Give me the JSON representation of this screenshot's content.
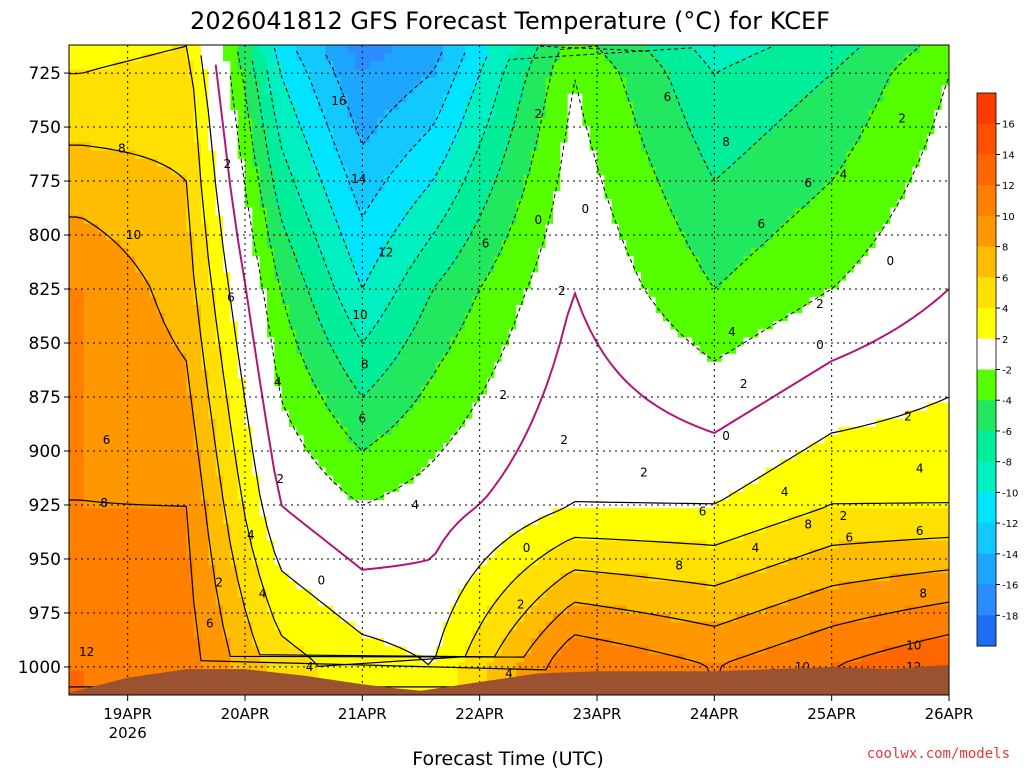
{
  "chart_data": {
    "type": "heatmap",
    "title": "2026041812 GFS Forecast Temperature (°C) for KCEF",
    "xlabel": "Forecast Time (UTC)",
    "ylabel": "",
    "credit": "coolwx.com/models",
    "x_start_day": 18.5,
    "x_end_day": 26.0,
    "x_ticks": [
      {
        "day": 19,
        "label": "19APR",
        "sublabel": "2026"
      },
      {
        "day": 20,
        "label": "20APR",
        "sublabel": ""
      },
      {
        "day": 21,
        "label": "21APR",
        "sublabel": ""
      },
      {
        "day": 22,
        "label": "22APR",
        "sublabel": ""
      },
      {
        "day": 23,
        "label": "23APR",
        "sublabel": ""
      },
      {
        "day": 24,
        "label": "24APR",
        "sublabel": ""
      },
      {
        "day": 25,
        "label": "25APR",
        "sublabel": ""
      },
      {
        "day": 26,
        "label": "26APR",
        "sublabel": ""
      }
    ],
    "y_ticks": [
      725,
      750,
      775,
      800,
      825,
      850,
      875,
      900,
      925,
      950,
      975,
      1000
    ],
    "ylim": [
      1013,
      712
    ],
    "colorbar": {
      "levels": [
        -18,
        -16,
        -14,
        -12,
        -10,
        -8,
        -6,
        -4,
        -2,
        2,
        4,
        6,
        8,
        10,
        12,
        14,
        16
      ],
      "colors": [
        "#1e6ef5",
        "#2a8cff",
        "#1ea6ff",
        "#12c8ff",
        "#00e4ff",
        "#00f0c2",
        "#00ee99",
        "#22e860",
        "#55ff00",
        "#ffffff",
        "#ffff00",
        "#ffe000",
        "#ffbd00",
        "#ff9800",
        "#ff8000",
        "#ff6600",
        "#ff5000",
        "#ff3a00"
      ]
    },
    "ground_pressure": [
      [
        18.5,
        1012
      ],
      [
        19.0,
        1005
      ],
      [
        19.5,
        1001
      ],
      [
        20.0,
        1001
      ],
      [
        20.5,
        1004
      ],
      [
        21.0,
        1008
      ],
      [
        21.3,
        1010
      ],
      [
        21.5,
        1011
      ],
      [
        22.0,
        1007
      ],
      [
        22.5,
        1003
      ],
      [
        23.0,
        1002
      ],
      [
        24.0,
        1002
      ],
      [
        24.5,
        1001
      ],
      [
        25.0,
        1000
      ],
      [
        25.5,
        1001
      ],
      [
        26.0,
        999
      ]
    ],
    "sample_profiles": [
      {
        "day": 18.6,
        "temps": [
          4,
          10,
          10,
          12
        ]
      },
      {
        "day": 19.5,
        "temps": [
          5,
          7,
          10,
          11
        ]
      },
      {
        "day": 20.3,
        "temps": [
          -10,
          -4,
          0,
          5
        ]
      },
      {
        "day": 21.0,
        "temps": [
          -16,
          -10,
          -2,
          3
        ]
      },
      {
        "day": 21.6,
        "temps": [
          -14,
          -6,
          -1,
          2
        ]
      },
      {
        "day": 22.8,
        "temps": [
          -2,
          0,
          2,
          12
        ]
      },
      {
        "day": 24.0,
        "temps": [
          -8,
          -4,
          2,
          10
        ]
      },
      {
        "day": 25.0,
        "temps": [
          -6,
          -2,
          4,
          12
        ]
      },
      {
        "day": 26.0,
        "temps": [
          -2,
          0,
          4,
          14
        ]
      }
    ],
    "contour_labels": [
      {
        "day": 18.95,
        "p": 760,
        "text": "8"
      },
      {
        "day": 19.05,
        "p": 800,
        "text": "10"
      },
      {
        "day": 18.82,
        "p": 895,
        "text": "6"
      },
      {
        "day": 18.8,
        "p": 924,
        "text": "8"
      },
      {
        "day": 18.65,
        "p": 993,
        "text": "12"
      },
      {
        "day": 19.85,
        "p": 767,
        "text": "2"
      },
      {
        "day": 19.88,
        "p": 829,
        "text": "6"
      },
      {
        "day": 20.28,
        "p": 868,
        "text": "4"
      },
      {
        "day": 20.8,
        "p": 738,
        "text": "16"
      },
      {
        "day": 20.97,
        "p": 774,
        "text": "14"
      },
      {
        "day": 21.2,
        "p": 808,
        "text": "12"
      },
      {
        "day": 20.98,
        "p": 837,
        "text": "10"
      },
      {
        "day": 21.02,
        "p": 860,
        "text": "8"
      },
      {
        "day": 21.0,
        "p": 885,
        "text": "6"
      },
      {
        "day": 22.5,
        "p": 744,
        "text": "2"
      },
      {
        "day": 23.6,
        "p": 736,
        "text": "6"
      },
      {
        "day": 24.1,
        "p": 757,
        "text": "8"
      },
      {
        "day": 24.8,
        "p": 776,
        "text": "6"
      },
      {
        "day": 25.1,
        "p": 772,
        "text": "4"
      },
      {
        "day": 24.4,
        "p": 795,
        "text": "6"
      },
      {
        "day": 25.6,
        "p": 746,
        "text": "2"
      },
      {
        "day": 22.5,
        "p": 793,
        "text": "0"
      },
      {
        "day": 22.9,
        "p": 788,
        "text": "0"
      },
      {
        "day": 22.05,
        "p": 804,
        "text": "6"
      },
      {
        "day": 22.7,
        "p": 826,
        "text": "2"
      },
      {
        "day": 24.15,
        "p": 845,
        "text": "4"
      },
      {
        "day": 24.9,
        "p": 832,
        "text": "2"
      },
      {
        "day": 25.5,
        "p": 812,
        "text": "0"
      },
      {
        "day": 24.9,
        "p": 851,
        "text": "0"
      },
      {
        "day": 24.25,
        "p": 869,
        "text": "2"
      },
      {
        "day": 24.1,
        "p": 893,
        "text": "0"
      },
      {
        "day": 22.2,
        "p": 874,
        "text": "2"
      },
      {
        "day": 22.72,
        "p": 895,
        "text": "2"
      },
      {
        "day": 23.4,
        "p": 910,
        "text": "2"
      },
      {
        "day": 20.3,
        "p": 913,
        "text": "2"
      },
      {
        "day": 20.05,
        "p": 939,
        "text": "4"
      },
      {
        "day": 21.45,
        "p": 925,
        "text": "4"
      },
      {
        "day": 22.4,
        "p": 945,
        "text": "0"
      },
      {
        "day": 19.78,
        "p": 961,
        "text": "2"
      },
      {
        "day": 20.15,
        "p": 966,
        "text": "4"
      },
      {
        "day": 20.65,
        "p": 960,
        "text": "0"
      },
      {
        "day": 19.7,
        "p": 980,
        "text": "6"
      },
      {
        "day": 20.55,
        "p": 1000,
        "text": "4"
      },
      {
        "day": 22.35,
        "p": 971,
        "text": "2"
      },
      {
        "day": 22.25,
        "p": 1003,
        "text": "4"
      },
      {
        "day": 23.9,
        "p": 928,
        "text": "6"
      },
      {
        "day": 23.7,
        "p": 953,
        "text": "8"
      },
      {
        "day": 24.35,
        "p": 945,
        "text": "4"
      },
      {
        "day": 24.6,
        "p": 919,
        "text": "4"
      },
      {
        "day": 24.8,
        "p": 934,
        "text": "8"
      },
      {
        "day": 25.15,
        "p": 940,
        "text": "6"
      },
      {
        "day": 25.1,
        "p": 930,
        "text": "2"
      },
      {
        "day": 25.65,
        "p": 884,
        "text": "2"
      },
      {
        "day": 25.75,
        "p": 908,
        "text": "4"
      },
      {
        "day": 25.75,
        "p": 937,
        "text": "6"
      },
      {
        "day": 25.78,
        "p": 966,
        "text": "8"
      },
      {
        "day": 25.7,
        "p": 990,
        "text": "10"
      },
      {
        "day": 25.7,
        "p": 1000,
        "text": "12"
      },
      {
        "day": 24.75,
        "p": 1000,
        "text": "10"
      },
      {
        "day": 24.5,
        "p": 1003,
        "text": "6"
      }
    ]
  }
}
